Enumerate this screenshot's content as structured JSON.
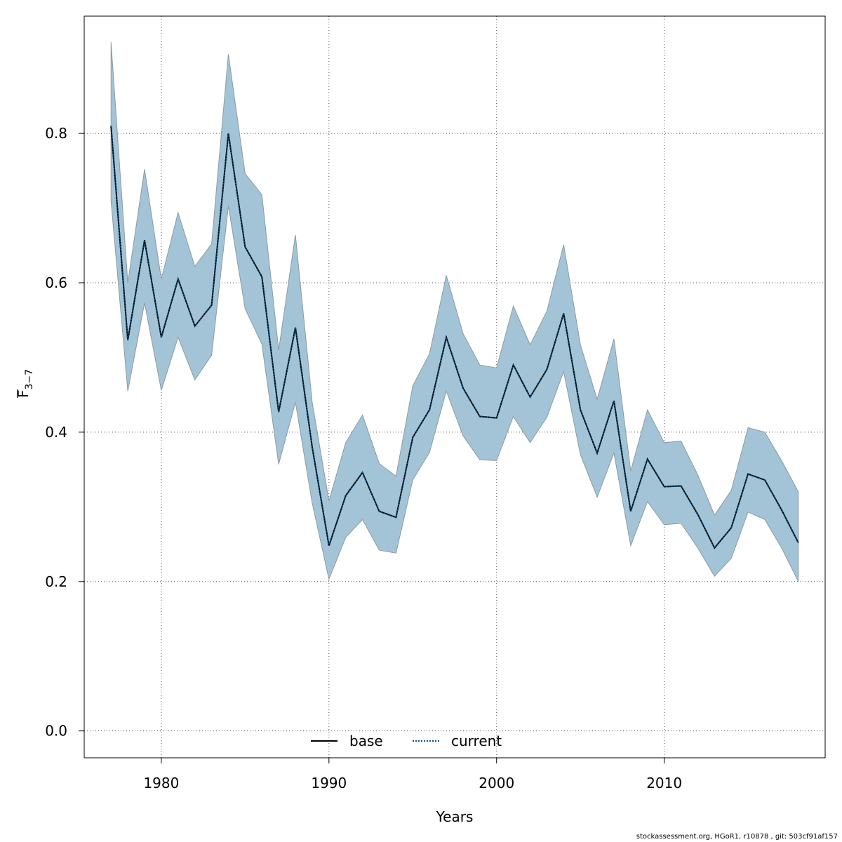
{
  "chart_data": {
    "type": "line",
    "xlabel": "Years",
    "ylabel_main": "F",
    "ylabel_sub": "3−7",
    "xlim": [
      1975.4,
      2019.6
    ],
    "ylim": [
      -0.036,
      0.957
    ],
    "xticks": [
      1980,
      1990,
      2000,
      2010
    ],
    "yticks": [
      0.0,
      0.2,
      0.4,
      0.6,
      0.8
    ],
    "ytick_labels": [
      "0.0",
      "0.2",
      "0.4",
      "0.6",
      "0.8"
    ],
    "xtick_labels": [
      "1980",
      "1990",
      "2000",
      "2010"
    ],
    "grid": true,
    "legend_position": "bottom-center",
    "band_color": "#a3c4d6",
    "band_edge_color": "#8a9ba5",
    "years": [
      1977,
      1978,
      1979,
      1980,
      1981,
      1982,
      1983,
      1984,
      1985,
      1986,
      1987,
      1988,
      1989,
      1990,
      1991,
      1992,
      1993,
      1994,
      1995,
      1996,
      1997,
      1998,
      1999,
      2000,
      2001,
      2002,
      2003,
      2004,
      2005,
      2006,
      2007,
      2008,
      2009,
      2010,
      2011,
      2012,
      2013,
      2014,
      2015,
      2016,
      2017,
      2018
    ],
    "series": [
      {
        "name": "base",
        "style": "solid",
        "color": "#000000",
        "values": [
          0.81,
          0.523,
          0.657,
          0.527,
          0.605,
          0.542,
          0.57,
          0.8,
          0.648,
          0.608,
          0.427,
          0.54,
          0.38,
          0.248,
          0.315,
          0.346,
          0.294,
          0.286,
          0.393,
          0.43,
          0.527,
          0.459,
          0.421,
          0.419,
          0.49,
          0.447,
          0.484,
          0.559,
          0.43,
          0.372,
          0.442,
          0.294,
          0.364,
          0.327,
          0.328,
          0.29,
          0.245,
          0.272,
          0.344,
          0.336,
          0.296,
          0.252
        ]
      },
      {
        "name": "current",
        "style": "dotted",
        "color": "#0a4a78",
        "values": [
          0.81,
          0.523,
          0.657,
          0.527,
          0.605,
          0.542,
          0.57,
          0.8,
          0.648,
          0.608,
          0.427,
          0.54,
          0.38,
          0.248,
          0.315,
          0.346,
          0.294,
          0.286,
          0.393,
          0.43,
          0.527,
          0.459,
          0.421,
          0.419,
          0.49,
          0.447,
          0.484,
          0.559,
          0.43,
          0.372,
          0.442,
          0.294,
          0.364,
          0.327,
          0.328,
          0.29,
          0.245,
          0.272,
          0.344,
          0.336,
          0.296,
          0.252
        ]
      }
    ],
    "band_upper": [
      0.922,
      0.6,
      0.752,
      0.605,
      0.694,
      0.622,
      0.652,
      0.906,
      0.746,
      0.718,
      0.51,
      0.664,
      0.44,
      0.308,
      0.386,
      0.423,
      0.358,
      0.341,
      0.462,
      0.505,
      0.61,
      0.532,
      0.49,
      0.486,
      0.569,
      0.517,
      0.562,
      0.651,
      0.517,
      0.444,
      0.525,
      0.348,
      0.43,
      0.386,
      0.388,
      0.343,
      0.289,
      0.322,
      0.406,
      0.4,
      0.362,
      0.32
    ],
    "band_lower": [
      0.71,
      0.455,
      0.573,
      0.456,
      0.527,
      0.47,
      0.503,
      0.703,
      0.565,
      0.518,
      0.357,
      0.44,
      0.305,
      0.203,
      0.259,
      0.283,
      0.242,
      0.238,
      0.336,
      0.373,
      0.455,
      0.395,
      0.363,
      0.362,
      0.421,
      0.386,
      0.42,
      0.481,
      0.37,
      0.313,
      0.372,
      0.248,
      0.307,
      0.276,
      0.278,
      0.245,
      0.207,
      0.231,
      0.293,
      0.283,
      0.245,
      0.2
    ]
  },
  "footer": "stockassessment.org, HGoR1, r10878 , git: 503cf91af157"
}
